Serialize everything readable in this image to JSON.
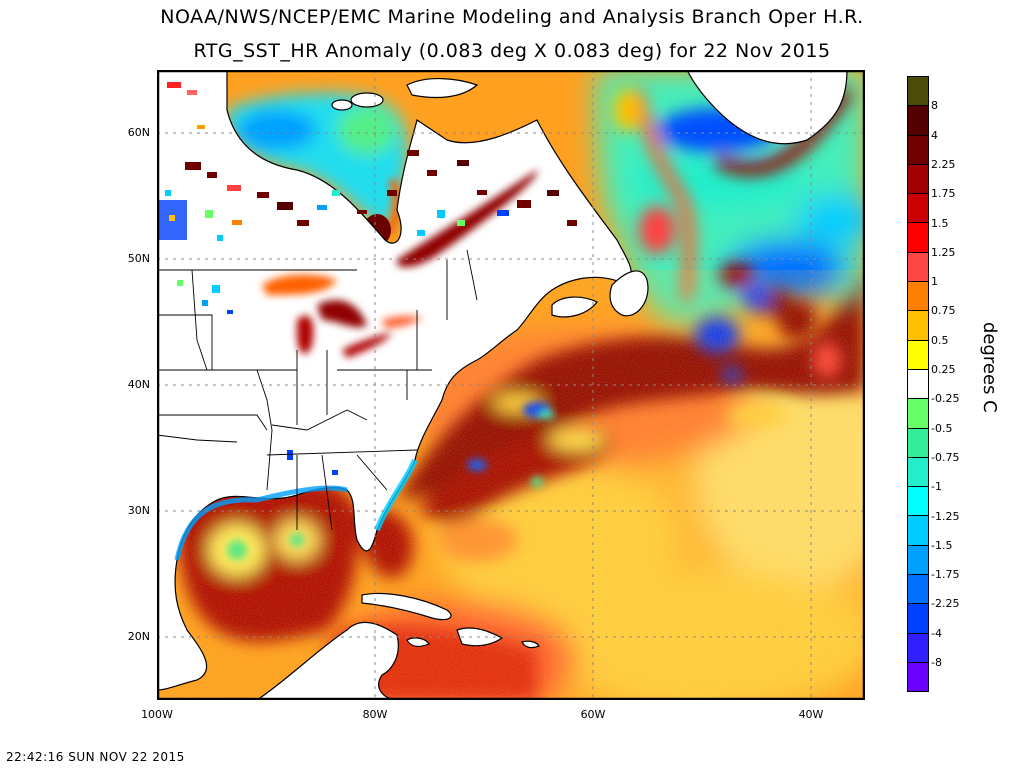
{
  "header": {
    "title_line1": "NOAA/NWS/NCEP/EMC Marine Modeling and Analysis Branch Oper H.R.",
    "title_line2": "RTG_SST_HR Anomaly (0.083 deg X 0.083 deg) for 22 Nov 2015"
  },
  "map": {
    "lat_labels": [
      "60N",
      "50N",
      "40N",
      "30N",
      "20N"
    ],
    "lon_labels": [
      "100W",
      "80W",
      "60W",
      "40W"
    ],
    "extent": {
      "lon_min": -100,
      "lon_max": -35,
      "lat_min": 15,
      "lat_max": 65
    }
  },
  "colorbar": {
    "units": "degrees C",
    "labels": [
      "8",
      "4",
      "2.25",
      "1.75",
      "1.5",
      "1.25",
      "1",
      "0.75",
      "0.5",
      "0.25",
      "-0.25",
      "-0.5",
      "-0.75",
      "-1",
      "-1.25",
      "-1.5",
      "-1.75",
      "-2.25",
      "-4",
      "-8"
    ],
    "colors": [
      "#4b4b0a",
      "#550000",
      "#700000",
      "#a00000",
      "#cc0000",
      "#ff0000",
      "#ff4646",
      "#ff8000",
      "#ffc000",
      "#ffff00",
      "#ffffff",
      "#66ff66",
      "#33ee99",
      "#22eecc",
      "#00ffff",
      "#00ccff",
      "#00a0ff",
      "#0070ff",
      "#0040ff",
      "#3020ff",
      "#6a00ff"
    ]
  },
  "footer": {
    "timestamp": "22:42:16  SUN NOV 22 2015"
  }
}
